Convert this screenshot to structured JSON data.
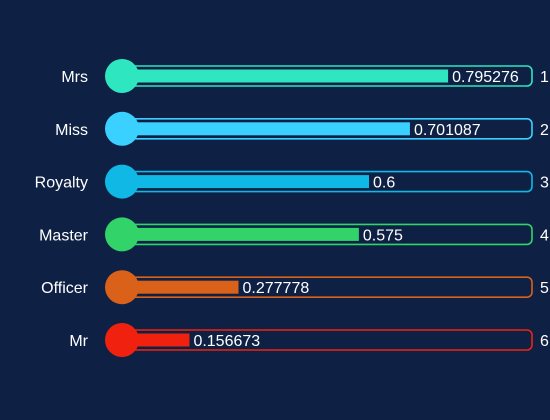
{
  "chart_data": {
    "type": "bar",
    "orientation": "horizontal",
    "categories": [
      "Mrs",
      "Miss",
      "Royalty",
      "Master",
      "Officer",
      "Mr"
    ],
    "values": [
      0.795276,
      0.701087,
      0.6,
      0.575,
      0.277778,
      0.156673
    ],
    "value_labels": [
      "0.795276",
      "0.701087",
      "0.6",
      "0.575",
      "0.277778",
      "0.156673"
    ],
    "ranks": [
      "1",
      "2",
      "3",
      "4",
      "5",
      "6"
    ],
    "colors": [
      "#2ee6c0",
      "#3ad0ff",
      "#10b8e6",
      "#32d46a",
      "#d9611a",
      "#f0220f"
    ],
    "xlim": [
      0,
      1
    ],
    "grid": false,
    "legend": "none"
  }
}
